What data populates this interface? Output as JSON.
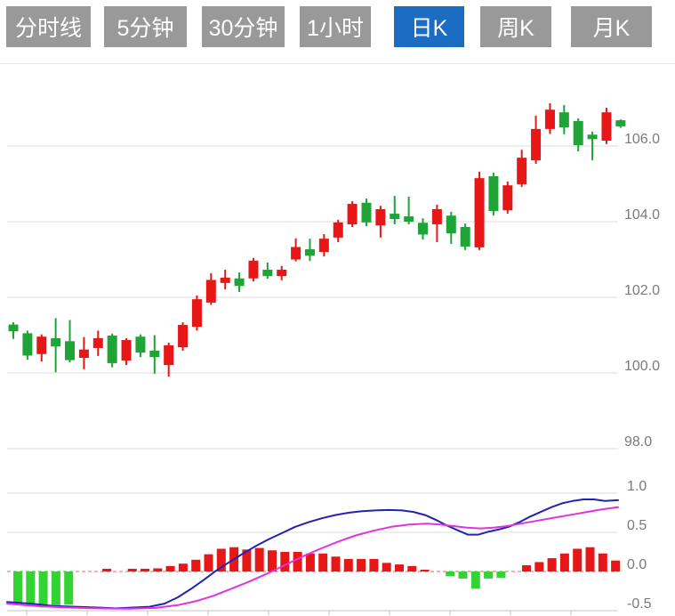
{
  "tabs": {
    "items": [
      {
        "label": "分时线",
        "name": "tab-time-share",
        "active": false
      },
      {
        "label": "5分钟",
        "name": "tab-5min",
        "active": false
      },
      {
        "label": "30分钟",
        "name": "tab-30min",
        "active": false
      },
      {
        "label": "1小时",
        "name": "tab-1hour",
        "active": false
      },
      {
        "label": "日K",
        "name": "tab-daily-k",
        "active": true
      },
      {
        "label": "周K",
        "name": "tab-weekly-k",
        "active": false
      },
      {
        "label": "月K",
        "name": "tab-monthly-k",
        "active": false
      }
    ],
    "active_color": "#1b6cc2",
    "inactive_color": "#999999",
    "text_color": "#ffffff"
  },
  "chart_data": {
    "type": "candlestick+macd",
    "convention": "red = up candle, green = down candle",
    "colors": {
      "up": "#e81717",
      "down": "#1fa437",
      "hist_up": "#e81717",
      "hist_down": "#33d333",
      "dif_line": "#2222b4",
      "dea_line": "#e233dd",
      "zero_line": "#ff5a5a",
      "grid": "#dcdcdc",
      "axis": "#c4c4c4",
      "label": "#7a7a7a"
    },
    "price_panel": {
      "ylabels": [
        "106.0",
        "104.0",
        "102.0",
        "100.0",
        "98.0"
      ],
      "yvalues": [
        106.0,
        104.0,
        102.0,
        100.0,
        98.0
      ],
      "ohlc_order": "open,high,low,close",
      "candles": [
        [
          101.28,
          101.34,
          100.9,
          101.1
        ],
        [
          101.05,
          101.12,
          100.35,
          100.46
        ],
        [
          100.5,
          101.02,
          100.3,
          100.96
        ],
        [
          100.92,
          101.45,
          100.02,
          100.7
        ],
        [
          100.84,
          101.4,
          100.28,
          100.34
        ],
        [
          100.4,
          100.95,
          100.1,
          100.62
        ],
        [
          100.66,
          101.12,
          100.45,
          100.92
        ],
        [
          100.99,
          101.04,
          100.15,
          100.26
        ],
        [
          100.33,
          100.92,
          100.21,
          100.87
        ],
        [
          100.96,
          101.02,
          100.42,
          100.54
        ],
        [
          100.59,
          101.0,
          99.98,
          100.42
        ],
        [
          100.21,
          100.8,
          99.9,
          100.73
        ],
        [
          100.68,
          101.34,
          100.59,
          101.27
        ],
        [
          101.22,
          102.05,
          101.12,
          101.95
        ],
        [
          101.86,
          102.64,
          101.8,
          102.46
        ],
        [
          102.38,
          102.73,
          102.21,
          102.52
        ],
        [
          102.5,
          102.66,
          102.14,
          102.3
        ],
        [
          102.5,
          103.04,
          102.42,
          102.97
        ],
        [
          102.73,
          102.92,
          102.49,
          102.56
        ],
        [
          102.56,
          102.83,
          102.45,
          102.73
        ],
        [
          103.0,
          103.56,
          102.95,
          103.33
        ],
        [
          103.27,
          103.55,
          102.96,
          103.1
        ],
        [
          103.2,
          103.67,
          103.08,
          103.55
        ],
        [
          103.58,
          104.05,
          103.46,
          103.98
        ],
        [
          103.93,
          104.54,
          103.86,
          104.47
        ],
        [
          104.5,
          104.61,
          103.88,
          103.98
        ],
        [
          103.9,
          104.42,
          103.58,
          104.33
        ],
        [
          104.21,
          104.68,
          103.93,
          104.07
        ],
        [
          104.14,
          104.66,
          103.93,
          104.0
        ],
        [
          103.97,
          104.09,
          103.53,
          103.66
        ],
        [
          103.93,
          104.45,
          103.46,
          104.33
        ],
        [
          104.16,
          104.26,
          103.41,
          103.69
        ],
        [
          103.86,
          103.95,
          103.25,
          103.34
        ],
        [
          103.32,
          105.32,
          103.25,
          105.15
        ],
        [
          105.2,
          105.3,
          104.16,
          104.28
        ],
        [
          104.3,
          105.06,
          104.21,
          104.96
        ],
        [
          104.99,
          105.9,
          104.92,
          105.69
        ],
        [
          105.62,
          106.8,
          105.53,
          106.45
        ],
        [
          106.45,
          107.13,
          106.32,
          106.96
        ],
        [
          106.89,
          107.08,
          106.31,
          106.49
        ],
        [
          106.66,
          106.73,
          105.86,
          106.02
        ],
        [
          106.3,
          106.38,
          105.62,
          106.18
        ],
        [
          106.14,
          107.01,
          106.05,
          106.89
        ],
        [
          106.68,
          106.7,
          106.48,
          106.52
        ]
      ]
    },
    "macd_panel": {
      "ylabels": [
        "1.0",
        "0.5",
        "0.0",
        "-0.5"
      ],
      "yvalues": [
        1.0,
        0.5,
        0.0,
        -0.5
      ],
      "histogram": [
        -0.41,
        -0.43,
        -0.46,
        -0.43,
        -0.42,
        0,
        0,
        0.035,
        0,
        0.035,
        0.035,
        0.04,
        0.07,
        0.1,
        0.15,
        0.22,
        0.29,
        0.31,
        0.28,
        0.3,
        0.27,
        0.25,
        0.25,
        0.23,
        0.23,
        0.19,
        0.16,
        0.16,
        0.16,
        0.11,
        0.09,
        0.07,
        0.02,
        0,
        -0.06,
        -0.09,
        -0.22,
        -0.09,
        -0.08,
        0,
        0.08,
        0.12,
        0.17,
        0.23,
        0.29,
        0.31,
        0.23,
        0.14
      ],
      "dif": [
        [
          8,
          -0.39
        ],
        [
          35,
          -0.41
        ],
        [
          60,
          -0.44
        ],
        [
          85,
          -0.45
        ],
        [
          110,
          -0.46
        ],
        [
          130,
          -0.47
        ],
        [
          150,
          -0.46
        ],
        [
          168,
          -0.45
        ],
        [
          185,
          -0.41
        ],
        [
          200,
          -0.33
        ],
        [
          215,
          -0.22
        ],
        [
          230,
          -0.1
        ],
        [
          243,
          0.01
        ],
        [
          258,
          0.12
        ],
        [
          272,
          0.22
        ],
        [
          287,
          0.32
        ],
        [
          302,
          0.41
        ],
        [
          317,
          0.49
        ],
        [
          332,
          0.57
        ],
        [
          347,
          0.63
        ],
        [
          362,
          0.68
        ],
        [
          377,
          0.72
        ],
        [
          392,
          0.75
        ],
        [
          407,
          0.77
        ],
        [
          422,
          0.78
        ],
        [
          437,
          0.785
        ],
        [
          452,
          0.78
        ],
        [
          465,
          0.76
        ],
        [
          478,
          0.72
        ],
        [
          490,
          0.66
        ],
        [
          502,
          0.59
        ],
        [
          514,
          0.53
        ],
        [
          526,
          0.47
        ],
        [
          538,
          0.47
        ],
        [
          550,
          0.51
        ],
        [
          562,
          0.54
        ],
        [
          572,
          0.57
        ],
        [
          584,
          0.63
        ],
        [
          596,
          0.7
        ],
        [
          608,
          0.76
        ],
        [
          620,
          0.82
        ],
        [
          632,
          0.87
        ],
        [
          644,
          0.9
        ],
        [
          656,
          0.92
        ],
        [
          668,
          0.92
        ],
        [
          680,
          0.9
        ],
        [
          695,
          0.91
        ]
      ],
      "dea": [
        [
          8,
          -0.41
        ],
        [
          40,
          -0.44
        ],
        [
          75,
          -0.46
        ],
        [
          110,
          -0.47
        ],
        [
          145,
          -0.475
        ],
        [
          175,
          -0.465
        ],
        [
          200,
          -0.43
        ],
        [
          220,
          -0.38
        ],
        [
          240,
          -0.31
        ],
        [
          260,
          -0.22
        ],
        [
          280,
          -0.13
        ],
        [
          300,
          -0.03
        ],
        [
          320,
          0.08
        ],
        [
          340,
          0.19
        ],
        [
          360,
          0.29
        ],
        [
          380,
          0.38
        ],
        [
          400,
          0.46
        ],
        [
          420,
          0.52
        ],
        [
          440,
          0.57
        ],
        [
          460,
          0.6
        ],
        [
          480,
          0.61
        ],
        [
          495,
          0.6
        ],
        [
          510,
          0.58
        ],
        [
          525,
          0.56
        ],
        [
          540,
          0.55
        ],
        [
          555,
          0.56
        ],
        [
          570,
          0.58
        ],
        [
          585,
          0.61
        ],
        [
          600,
          0.64
        ],
        [
          615,
          0.67
        ],
        [
          630,
          0.7
        ],
        [
          645,
          0.73
        ],
        [
          660,
          0.76
        ],
        [
          675,
          0.79
        ],
        [
          695,
          0.82
        ]
      ],
      "x_ticks": [
        30,
        98,
        166,
        234,
        302,
        370,
        438,
        506,
        574,
        642
      ]
    }
  }
}
